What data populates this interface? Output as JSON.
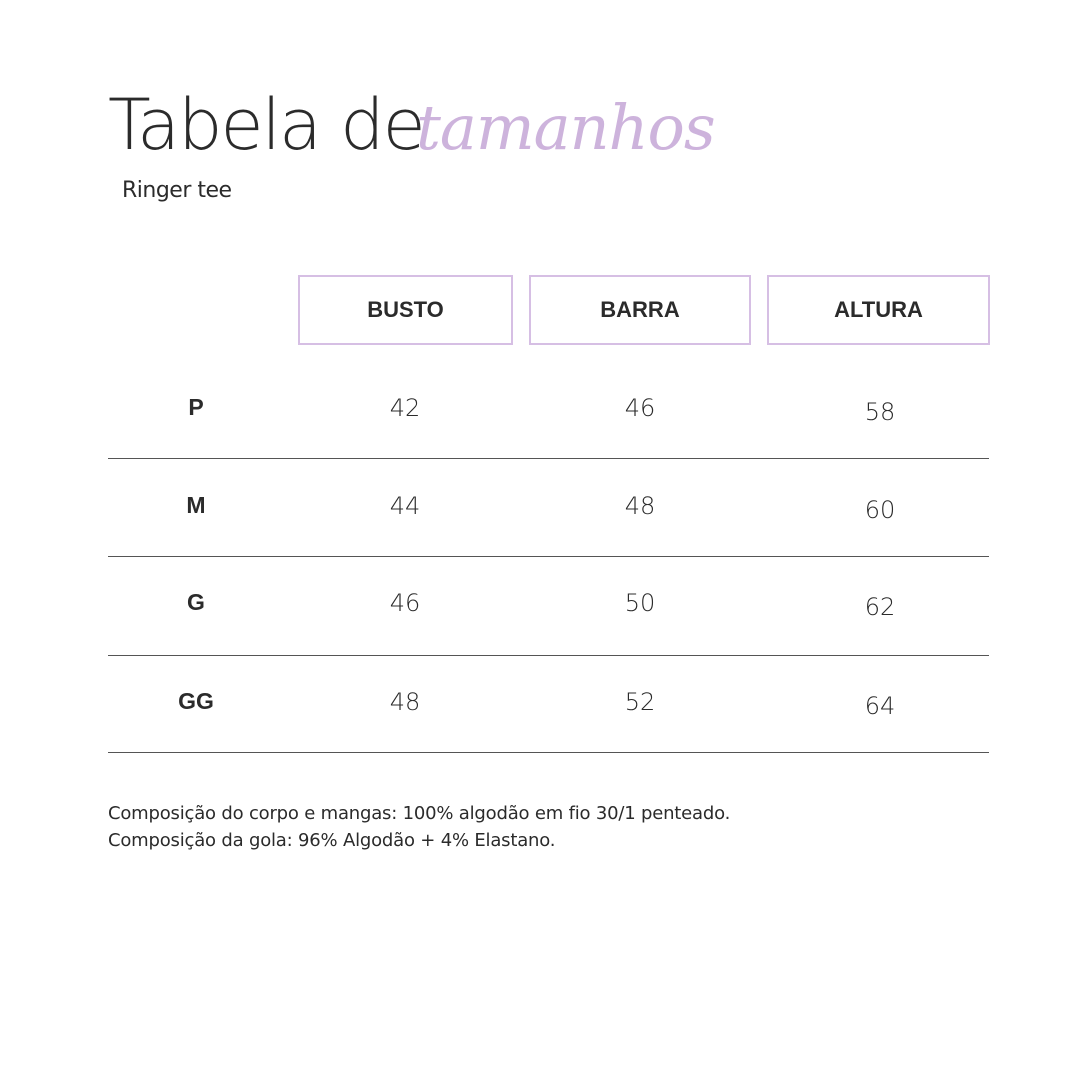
{
  "title": {
    "main": "Tabela de",
    "script": "tamanhos",
    "subtitle": "Ringer tee"
  },
  "accent_color": "#cdb3dc",
  "table": {
    "headers": [
      "BUSTO",
      "BARRA",
      "ALTURA"
    ],
    "rows": [
      {
        "size": "P",
        "values": [
          "42",
          "46",
          "58"
        ]
      },
      {
        "size": "M",
        "values": [
          "44",
          "48",
          "60"
        ]
      },
      {
        "size": "G",
        "values": [
          "46",
          "50",
          "62"
        ]
      },
      {
        "size": "GG",
        "values": [
          "48",
          "52",
          "64"
        ]
      }
    ]
  },
  "notes": [
    "Composição do corpo e mangas: 100% algodão em fio 30/1 penteado.",
    "Composição da gola: 96% Algodão + 4% Elastano."
  ]
}
